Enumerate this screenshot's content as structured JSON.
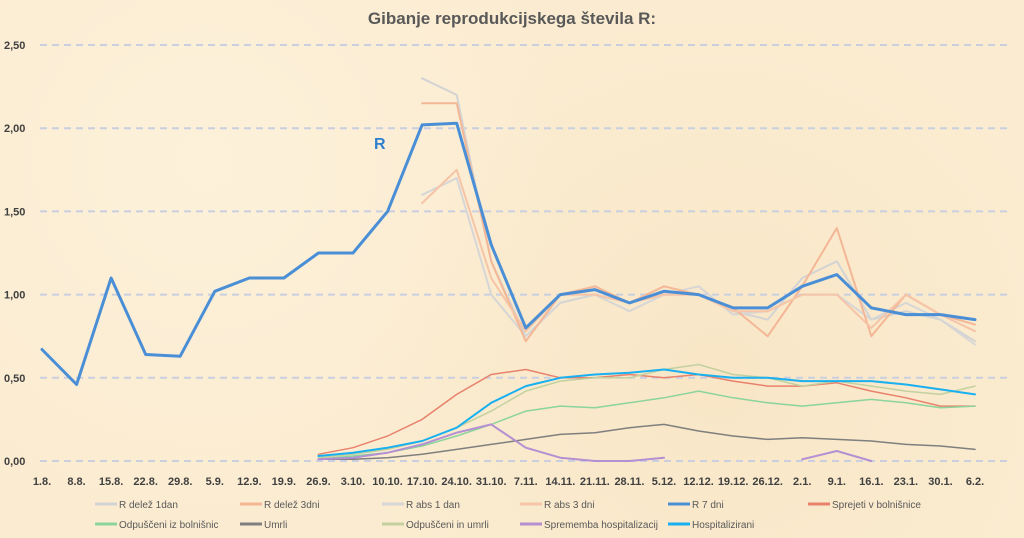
{
  "chart_data": {
    "type": "line",
    "title": "Gibanje reprodukcijskega števila R:",
    "annotation": "R",
    "xlabel": "",
    "ylabel": "",
    "ylim": [
      0,
      2.5
    ],
    "yticks": [
      "0,00",
      "0,50",
      "1,00",
      "1,50",
      "2,00",
      "2,50"
    ],
    "grid": true,
    "legend_position": "bottom",
    "categories": [
      "1.8.",
      "8.8.",
      "15.8.",
      "22.8.",
      "29.8.",
      "5.9.",
      "12.9.",
      "19.9.",
      "26.9.",
      "3.10.",
      "10.10.",
      "17.10.",
      "24.10.",
      "31.10.",
      "7.11.",
      "14.11.",
      "21.11.",
      "28.11.",
      "5.12.",
      "12.12.",
      "19.12.",
      "26.12.",
      "2.1.",
      "9.1.",
      "16.1.",
      "23.1.",
      "30.1.",
      "6.2."
    ],
    "series": [
      {
        "name": "R delež 1dan",
        "color": "#d3d3d3",
        "width": 2,
        "values": [
          null,
          null,
          null,
          null,
          null,
          null,
          null,
          null,
          null,
          null,
          null,
          2.3,
          2.2,
          1.2,
          0.75,
          0.95,
          1.0,
          0.95,
          1.0,
          1.0,
          0.9,
          0.85,
          1.1,
          1.2,
          0.85,
          0.9,
          0.85,
          0.72
        ]
      },
      {
        "name": "R delež 3dni",
        "color": "#f4b796",
        "width": 2,
        "values": [
          null,
          null,
          null,
          null,
          null,
          null,
          null,
          null,
          null,
          null,
          null,
          2.15,
          2.15,
          1.2,
          0.72,
          1.0,
          1.05,
          0.95,
          1.05,
          1.0,
          0.92,
          0.75,
          1.05,
          1.4,
          0.75,
          1.0,
          0.88,
          0.82
        ]
      },
      {
        "name": "R abs 1 dan",
        "color": "#d6d6d6",
        "width": 2,
        "values": [
          null,
          null,
          null,
          null,
          null,
          null,
          null,
          null,
          null,
          null,
          null,
          1.6,
          1.7,
          1.0,
          0.75,
          0.95,
          1.0,
          0.9,
          1.0,
          1.05,
          0.88,
          0.9,
          1.0,
          1.0,
          0.85,
          0.95,
          0.85,
          0.7
        ]
      },
      {
        "name": "R abs 3 dni",
        "color": "#f6c4a6",
        "width": 2,
        "values": [
          null,
          null,
          null,
          null,
          null,
          null,
          null,
          null,
          null,
          null,
          null,
          1.55,
          1.75,
          1.1,
          0.78,
          1.0,
          1.0,
          0.95,
          1.0,
          1.0,
          0.9,
          0.9,
          1.0,
          1.0,
          0.8,
          1.0,
          0.88,
          0.78
        ]
      },
      {
        "name": "R 7 dni",
        "color": "#4a8fd6",
        "width": 3,
        "values": [
          0.67,
          0.46,
          1.1,
          0.64,
          0.63,
          1.02,
          1.1,
          1.1,
          1.25,
          1.25,
          1.5,
          2.02,
          2.03,
          1.3,
          0.8,
          1.0,
          1.03,
          0.95,
          1.02,
          1.0,
          0.92,
          0.92,
          1.05,
          1.12,
          0.92,
          0.88,
          0.88,
          0.85
        ]
      },
      {
        "name": "Sprejeti v bolnišnice",
        "color": "#e8826c",
        "width": 1.5,
        "values": [
          null,
          null,
          null,
          null,
          null,
          null,
          null,
          null,
          0.04,
          0.08,
          0.15,
          0.25,
          0.4,
          0.52,
          0.55,
          0.5,
          0.5,
          0.52,
          0.5,
          0.52,
          0.48,
          0.45,
          0.45,
          0.47,
          0.42,
          0.38,
          0.33,
          0.33
        ]
      },
      {
        "name": "Odpuščeni iz bolnišnic",
        "color": "#8bd49c",
        "width": 1.5,
        "values": [
          null,
          null,
          null,
          null,
          null,
          null,
          null,
          null,
          0.01,
          0.03,
          0.05,
          0.09,
          0.15,
          0.22,
          0.3,
          0.33,
          0.32,
          0.35,
          0.38,
          0.42,
          0.38,
          0.35,
          0.33,
          0.35,
          0.37,
          0.35,
          0.32,
          0.33
        ]
      },
      {
        "name": "Umrli",
        "color": "#7f7f7f",
        "width": 1.5,
        "values": [
          null,
          null,
          null,
          null,
          null,
          null,
          null,
          null,
          0.01,
          0.01,
          0.02,
          0.04,
          0.07,
          0.1,
          0.13,
          0.16,
          0.17,
          0.2,
          0.22,
          0.18,
          0.15,
          0.13,
          0.14,
          0.13,
          0.12,
          0.1,
          0.09,
          0.07
        ]
      },
      {
        "name": "Odpuščeni in umrli",
        "color": "#c2d19f",
        "width": 1.5,
        "values": [
          null,
          null,
          null,
          null,
          null,
          null,
          null,
          null,
          0.02,
          0.04,
          0.07,
          0.12,
          0.2,
          0.3,
          0.42,
          0.48,
          0.5,
          0.5,
          0.55,
          0.58,
          0.52,
          0.5,
          0.45,
          0.48,
          0.45,
          0.42,
          0.4,
          0.45
        ]
      },
      {
        "name": "Sprememba hospitalizacij",
        "color": "#b48fd2",
        "width": 2,
        "values": [
          null,
          null,
          null,
          null,
          null,
          null,
          null,
          null,
          0.01,
          0.02,
          0.05,
          0.1,
          0.17,
          0.22,
          0.08,
          0.02,
          0.0,
          0.0,
          0.02,
          null,
          null,
          null,
          0.01,
          0.06,
          0.0,
          null,
          null,
          null
        ]
      },
      {
        "name": "Hospitalizirani",
        "color": "#1ab0f0",
        "width": 2,
        "values": [
          null,
          null,
          null,
          null,
          null,
          null,
          null,
          null,
          0.03,
          0.05,
          0.08,
          0.12,
          0.2,
          0.35,
          0.45,
          0.5,
          0.52,
          0.53,
          0.55,
          0.52,
          0.5,
          0.5,
          0.48,
          0.48,
          0.48,
          0.46,
          0.43,
          0.4
        ]
      }
    ]
  }
}
